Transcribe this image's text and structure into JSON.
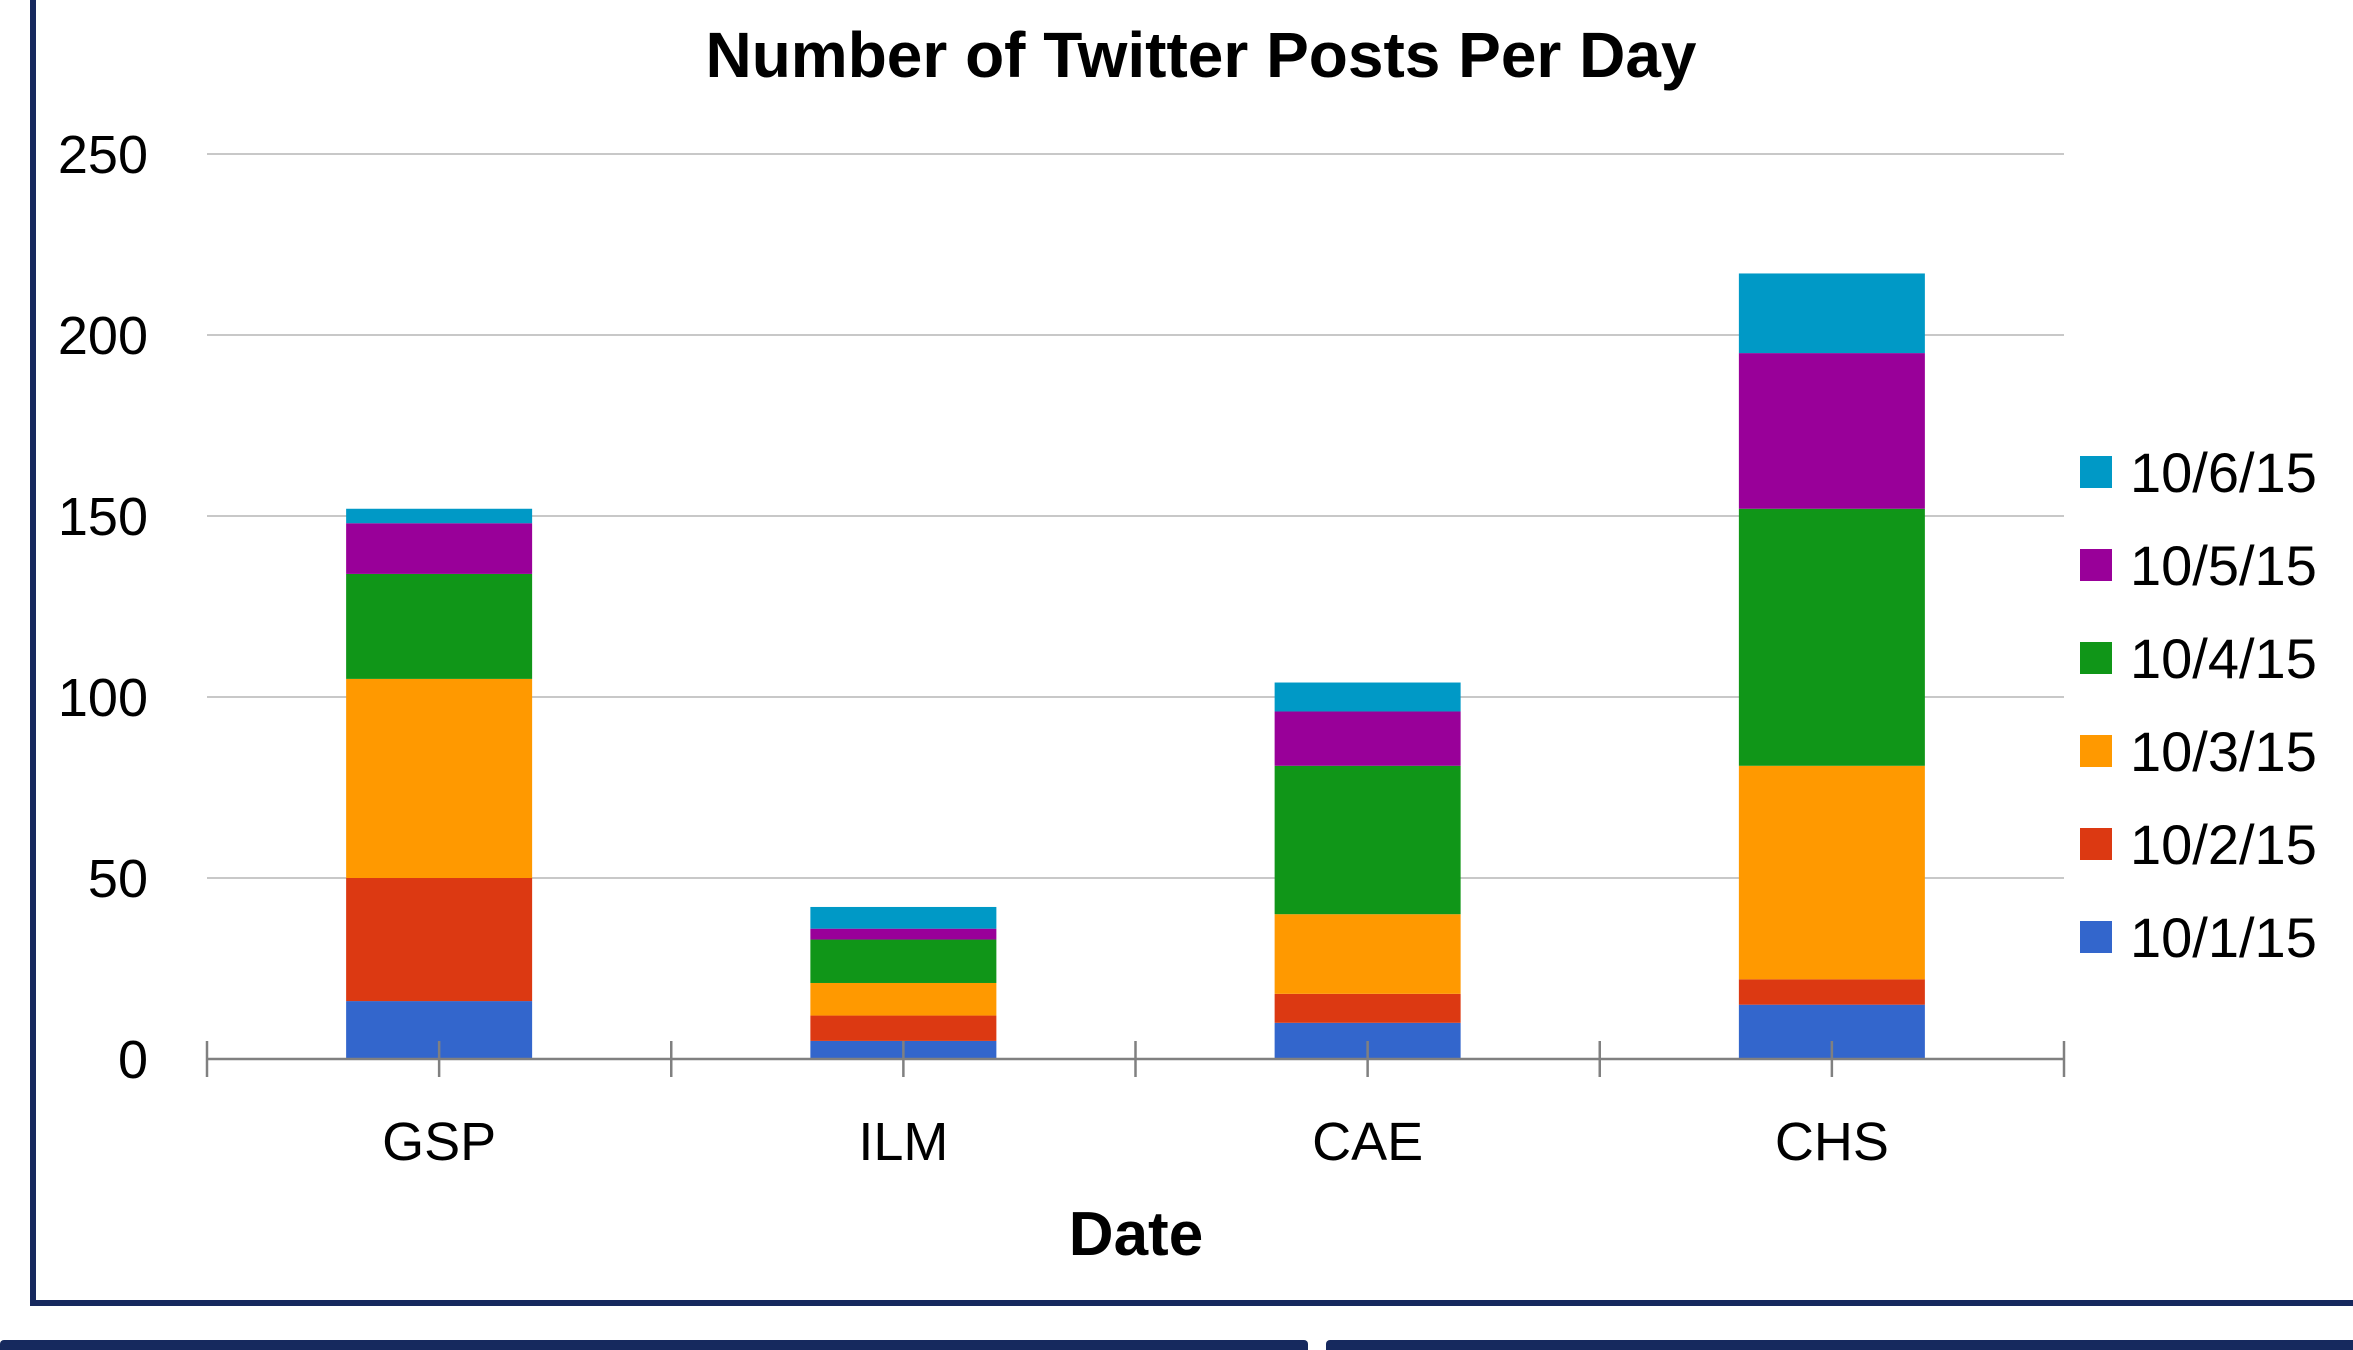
{
  "chart_data": {
    "type": "bar",
    "stacked": true,
    "title": "Number of Twitter Posts Per Day",
    "xlabel": "Date",
    "ylabel": "",
    "categories": [
      "GSP",
      "ILM",
      "CAE",
      "CHS"
    ],
    "ylim": [
      0,
      250
    ],
    "yticks": [
      0,
      50,
      100,
      150,
      200,
      250
    ],
    "grid": true,
    "legend_position": "right",
    "series": [
      {
        "name": "10/1/15",
        "color": "#3366cc",
        "values": [
          16,
          5,
          10,
          15
        ]
      },
      {
        "name": "10/2/15",
        "color": "#dc3912",
        "values": [
          34,
          7,
          8,
          7
        ]
      },
      {
        "name": "10/3/15",
        "color": "#ff9900",
        "values": [
          55,
          9,
          22,
          59
        ]
      },
      {
        "name": "10/4/15",
        "color": "#109618",
        "values": [
          29,
          12,
          41,
          71
        ]
      },
      {
        "name": "10/5/15",
        "color": "#990099",
        "values": [
          14,
          3,
          15,
          43
        ]
      },
      {
        "name": "10/6/15",
        "color": "#0099c6",
        "values": [
          4,
          6,
          8,
          22
        ]
      }
    ]
  }
}
